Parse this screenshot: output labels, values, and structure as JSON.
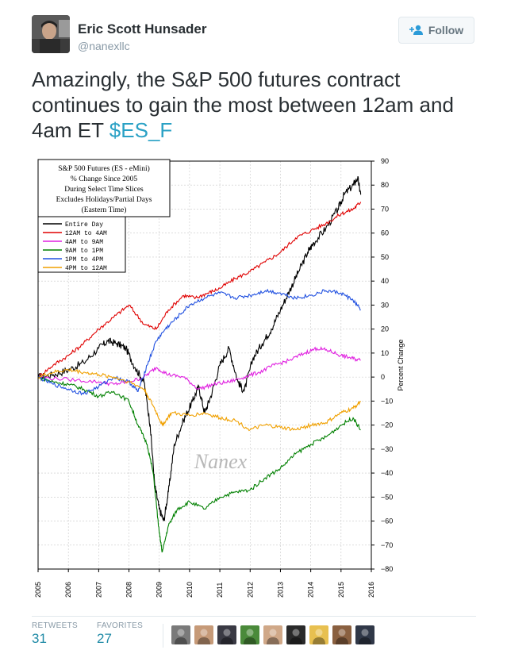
{
  "author": {
    "name": "Eric Scott Hunsader",
    "handle": "@nanexllc"
  },
  "follow_button": {
    "label": "Follow"
  },
  "tweet": {
    "text": "Amazingly, the S&P 500 futures contract continues to gain the most between 12am and 4am ET",
    "cashtag": "$ES_F"
  },
  "chart_data": {
    "type": "line",
    "title": "S&P 500 Futures (ES - eMini) % Change Since 2005 During Select Time Slices Excludes Holidays/Partial Days (Eastern Time)",
    "title_lines": [
      "S&P 500 Futures (ES - eMini)",
      "% Change Since 2005",
      "During Select Time Slices",
      "Excludes Holidays/Partial Days",
      "(Eastern Time)"
    ],
    "ylabel": "Percent Change",
    "watermark": "Nanex",
    "xlim": [
      2005,
      2016
    ],
    "ylim": [
      -80,
      90
    ],
    "x_ticks": [
      "2005",
      "2006",
      "2007",
      "2008",
      "2009",
      "2010",
      "2011",
      "2012",
      "2013",
      "2014",
      "2015",
      "2016"
    ],
    "y_ticks": [
      "90",
      "80",
      "70",
      "60",
      "50",
      "40",
      "30",
      "20",
      "10",
      "0",
      "−10",
      "−20",
      "−30",
      "−40",
      "−50",
      "−60",
      "−70",
      "−80"
    ],
    "legend_position": "top-left",
    "grid": true,
    "series": [
      {
        "name": "Entire Day",
        "color": "#000000",
        "points": [
          [
            2005,
            0
          ],
          [
            2005.5,
            1
          ],
          [
            2006,
            3
          ],
          [
            2006.5,
            6
          ],
          [
            2007,
            12
          ],
          [
            2007.3,
            15
          ],
          [
            2007.6,
            14
          ],
          [
            2007.9,
            12
          ],
          [
            2008.2,
            4
          ],
          [
            2008.5,
            -2
          ],
          [
            2008.7,
            -20
          ],
          [
            2008.85,
            -45
          ],
          [
            2009.0,
            -55
          ],
          [
            2009.15,
            -60
          ],
          [
            2009.3,
            -48
          ],
          [
            2009.5,
            -28
          ],
          [
            2009.8,
            -18
          ],
          [
            2010.1,
            -10
          ],
          [
            2010.3,
            -4
          ],
          [
            2010.5,
            -15
          ],
          [
            2010.7,
            -8
          ],
          [
            2011.0,
            5
          ],
          [
            2011.3,
            12
          ],
          [
            2011.6,
            -2
          ],
          [
            2011.8,
            -6
          ],
          [
            2012.1,
            8
          ],
          [
            2012.4,
            14
          ],
          [
            2012.7,
            20
          ],
          [
            2013.0,
            28
          ],
          [
            2013.3,
            36
          ],
          [
            2013.6,
            44
          ],
          [
            2013.9,
            52
          ],
          [
            2014.1,
            56
          ],
          [
            2014.5,
            62
          ],
          [
            2014.9,
            70
          ],
          [
            2015.1,
            76
          ],
          [
            2015.4,
            80
          ],
          [
            2015.55,
            83
          ],
          [
            2015.65,
            76
          ]
        ]
      },
      {
        "name": "12AM to 4AM",
        "color": "#e00000",
        "points": [
          [
            2005,
            0
          ],
          [
            2005.5,
            5
          ],
          [
            2006,
            9
          ],
          [
            2006.5,
            14
          ],
          [
            2007,
            20
          ],
          [
            2007.5,
            25
          ],
          [
            2008,
            30
          ],
          [
            2008.5,
            22
          ],
          [
            2008.9,
            20
          ],
          [
            2009.3,
            28
          ],
          [
            2009.8,
            34
          ],
          [
            2010.2,
            33
          ],
          [
            2010.6,
            35
          ],
          [
            2011,
            37
          ],
          [
            2011.5,
            41
          ],
          [
            2012,
            44
          ],
          [
            2012.5,
            48
          ],
          [
            2013,
            52
          ],
          [
            2013.5,
            58
          ],
          [
            2014,
            61
          ],
          [
            2014.5,
            64
          ],
          [
            2015,
            68
          ],
          [
            2015.4,
            70
          ],
          [
            2015.65,
            73
          ]
        ]
      },
      {
        "name": "4AM to 9AM",
        "color": "#e020e0",
        "points": [
          [
            2005,
            0
          ],
          [
            2006,
            -1
          ],
          [
            2007,
            -2
          ],
          [
            2007.5,
            -3
          ],
          [
            2008,
            -2
          ],
          [
            2008.5,
            0
          ],
          [
            2008.9,
            4
          ],
          [
            2009.3,
            1
          ],
          [
            2009.8,
            0
          ],
          [
            2010.3,
            -5
          ],
          [
            2010.8,
            -3
          ],
          [
            2011.3,
            -2
          ],
          [
            2011.8,
            0
          ],
          [
            2012.3,
            2
          ],
          [
            2012.8,
            5
          ],
          [
            2013.3,
            7
          ],
          [
            2013.8,
            10
          ],
          [
            2014.2,
            12
          ],
          [
            2014.6,
            11
          ],
          [
            2015,
            9
          ],
          [
            2015.3,
            8
          ],
          [
            2015.65,
            7
          ]
        ]
      },
      {
        "name": "9AM to 1PM",
        "color": "#008000",
        "points": [
          [
            2005,
            0
          ],
          [
            2005.5,
            -2
          ],
          [
            2006,
            -3
          ],
          [
            2006.5,
            -5
          ],
          [
            2007,
            -8
          ],
          [
            2007.5,
            -6
          ],
          [
            2008,
            -10
          ],
          [
            2008.3,
            -20
          ],
          [
            2008.6,
            -28
          ],
          [
            2008.8,
            -40
          ],
          [
            2009,
            -65
          ],
          [
            2009.1,
            -73
          ],
          [
            2009.3,
            -62
          ],
          [
            2009.6,
            -55
          ],
          [
            2010,
            -52
          ],
          [
            2010.5,
            -55
          ],
          [
            2011,
            -50
          ],
          [
            2011.5,
            -48
          ],
          [
            2012,
            -47
          ],
          [
            2012.5,
            -42
          ],
          [
            2013,
            -38
          ],
          [
            2013.5,
            -32
          ],
          [
            2014,
            -28
          ],
          [
            2014.5,
            -25
          ],
          [
            2015,
            -20
          ],
          [
            2015.4,
            -17
          ],
          [
            2015.65,
            -22
          ]
        ]
      },
      {
        "name": "1PM to 4PM",
        "color": "#2050e0",
        "points": [
          [
            2005,
            0
          ],
          [
            2005.5,
            -3
          ],
          [
            2006,
            -5
          ],
          [
            2006.5,
            -7
          ],
          [
            2007,
            -4
          ],
          [
            2007.5,
            0
          ],
          [
            2008,
            -2
          ],
          [
            2008.3,
            -6
          ],
          [
            2008.6,
            5
          ],
          [
            2008.9,
            15
          ],
          [
            2009.2,
            20
          ],
          [
            2009.6,
            25
          ],
          [
            2010,
            30
          ],
          [
            2010.5,
            33
          ],
          [
            2011,
            35
          ],
          [
            2011.5,
            33
          ],
          [
            2012,
            34
          ],
          [
            2012.5,
            36
          ],
          [
            2013,
            35
          ],
          [
            2013.5,
            33
          ],
          [
            2014,
            34
          ],
          [
            2014.5,
            36
          ],
          [
            2015,
            35
          ],
          [
            2015.4,
            32
          ],
          [
            2015.65,
            28
          ]
        ]
      },
      {
        "name": "4PM to 12AM",
        "color": "#f0a000",
        "points": [
          [
            2005,
            0
          ],
          [
            2005.5,
            2
          ],
          [
            2006,
            3
          ],
          [
            2006.5,
            2
          ],
          [
            2007,
            1
          ],
          [
            2007.5,
            0
          ],
          [
            2008,
            -2
          ],
          [
            2008.5,
            -5
          ],
          [
            2008.8,
            -12
          ],
          [
            2009.1,
            -20
          ],
          [
            2009.4,
            -15
          ],
          [
            2010,
            -16
          ],
          [
            2010.5,
            -15
          ],
          [
            2011,
            -17
          ],
          [
            2011.5,
            -18
          ],
          [
            2012,
            -22
          ],
          [
            2012.5,
            -20
          ],
          [
            2013,
            -21
          ],
          [
            2013.5,
            -22
          ],
          [
            2014,
            -20
          ],
          [
            2014.5,
            -19
          ],
          [
            2015,
            -15
          ],
          [
            2015.4,
            -13
          ],
          [
            2015.65,
            -10
          ]
        ]
      }
    ]
  },
  "stats": {
    "retweets_label": "RETWEETS",
    "retweets": "31",
    "favorites_label": "FAVORITES",
    "favorites": "27"
  },
  "favoriter_colors": [
    "#7a7a7a",
    "#c69a78",
    "#3a3a44",
    "#4a8a3a",
    "#d0a888",
    "#2a2a2a",
    "#e8c050",
    "#8a6040",
    "#303848"
  ]
}
